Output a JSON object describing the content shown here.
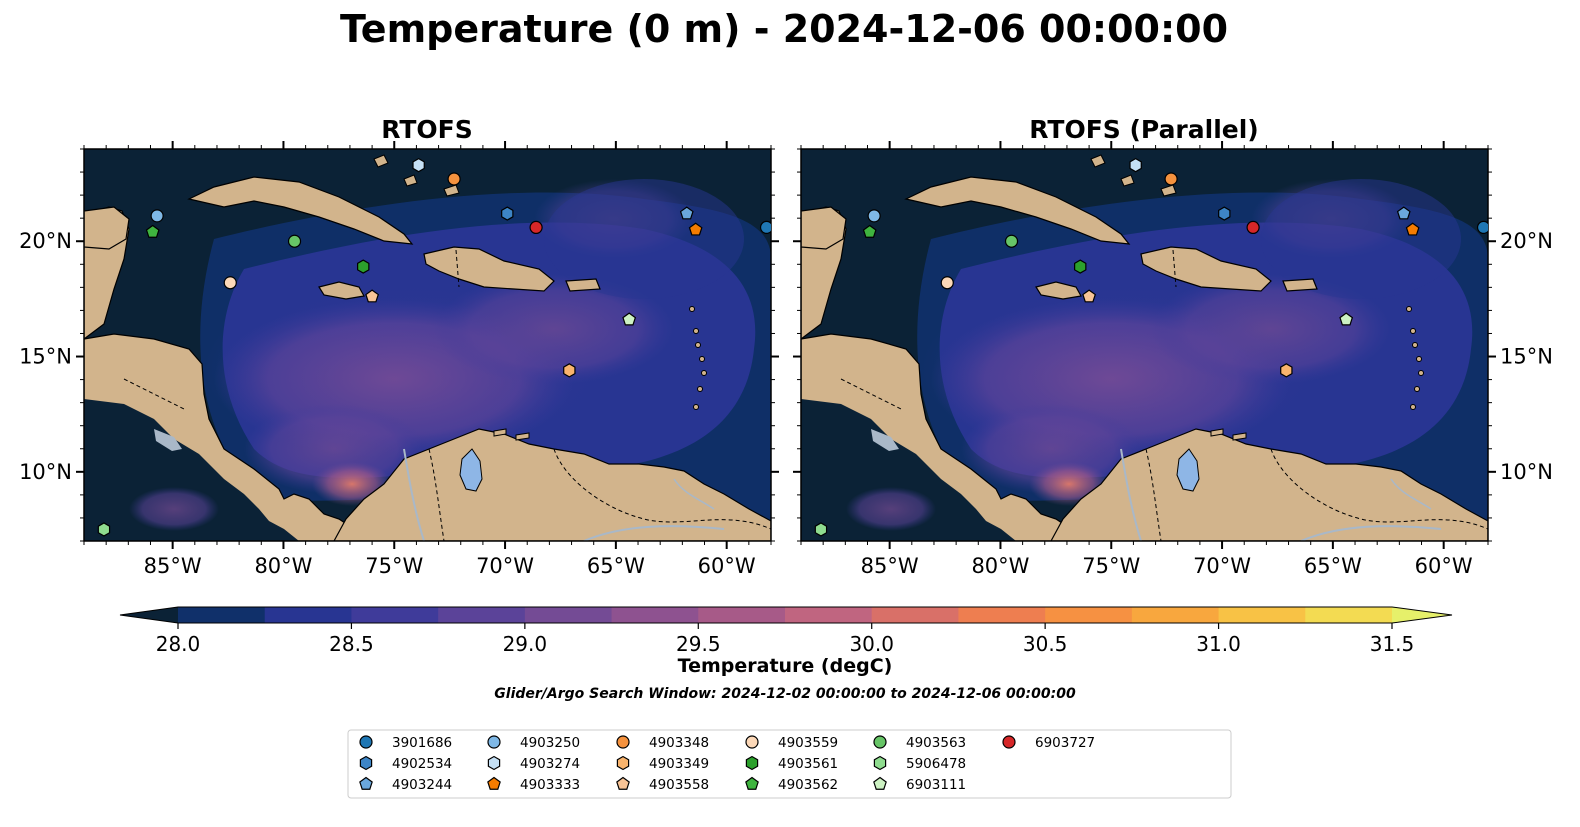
{
  "chart_data": {
    "type": "heatmap",
    "title": "Temperature (0 m) - 2024-12-06 00:00:00",
    "panels": [
      {
        "name": "RTOFS"
      },
      {
        "name": "RTOFS (Parallel)"
      }
    ],
    "lon_range": [
      -89,
      -58
    ],
    "lat_range": [
      7,
      24
    ],
    "x_ticks": [
      -85,
      -80,
      -75,
      -70,
      -65,
      -60
    ],
    "x_tick_labels": [
      "85°W",
      "80°W",
      "75°W",
      "70°W",
      "65°W",
      "60°W"
    ],
    "y_ticks": [
      10,
      15,
      20
    ],
    "y_tick_labels": [
      "10°N",
      "15°N",
      "20°N"
    ],
    "colorbar": {
      "label": "Temperature (degC)",
      "min": 28.0,
      "max": 31.5,
      "step": 0.25,
      "ticks": [
        28.0,
        28.5,
        29.0,
        29.5,
        30.0,
        30.5,
        31.0,
        31.5
      ],
      "tick_labels": [
        "28.0",
        "28.5",
        "29.0",
        "29.5",
        "30.0",
        "30.5",
        "31.0",
        "31.5"
      ],
      "colors": [
        "#0b2236",
        "#10306a",
        "#283592",
        "#3f3b9a",
        "#5b4399",
        "#744b95",
        "#8e5290",
        "#a75a88",
        "#c06580",
        "#d97068",
        "#ee7e50",
        "#f69142",
        "#f8a73e",
        "#f8c245",
        "#f3db52",
        "#e6f06a"
      ]
    },
    "search_window_note": "Glider/Argo Search Window: 2024-12-02 00:00:00 to 2024-12-06 00:00:00",
    "floats": [
      {
        "id": "3901686",
        "marker": "circle",
        "color": "#1f77b4",
        "lon": -58.2,
        "lat": 20.6
      },
      {
        "id": "4902534",
        "marker": "hexagon",
        "color": "#3d85c6",
        "lon": -69.9,
        "lat": 21.2
      },
      {
        "id": "4903244",
        "marker": "pentagon",
        "color": "#6aa7dc",
        "lon": -61.8,
        "lat": 21.2
      },
      {
        "id": "4903250",
        "marker": "circle",
        "color": "#7fb8e6",
        "lon": -85.7,
        "lat": 21.1
      },
      {
        "id": "4903274",
        "marker": "hexagon",
        "color": "#c5e0f5",
        "lon": -73.9,
        "lat": 23.3
      },
      {
        "id": "4903333",
        "marker": "pentagon",
        "color": "#f57c00",
        "lon": -61.4,
        "lat": 20.5
      },
      {
        "id": "4903348",
        "marker": "circle",
        "color": "#f5923e",
        "lon": -72.3,
        "lat": 22.7
      },
      {
        "id": "4903349",
        "marker": "hexagon",
        "color": "#f9b46d",
        "lon": -67.1,
        "lat": 14.4
      },
      {
        "id": "4903558",
        "marker": "pentagon",
        "color": "#f8c496",
        "lon": -76.0,
        "lat": 17.6
      },
      {
        "id": "4903559",
        "marker": "circle",
        "color": "#fcd8b8",
        "lon": -82.4,
        "lat": 18.2
      },
      {
        "id": "4903561",
        "marker": "hexagon",
        "color": "#2ca02c",
        "lon": -76.4,
        "lat": 18.9
      },
      {
        "id": "4903562",
        "marker": "pentagon",
        "color": "#3fb43f",
        "lon": -85.9,
        "lat": 20.4
      },
      {
        "id": "4903563",
        "marker": "circle",
        "color": "#67c567",
        "lon": -79.5,
        "lat": 20.0
      },
      {
        "id": "5906478",
        "marker": "hexagon",
        "color": "#8fdc8f",
        "lon": -88.1,
        "lat": 7.5
      },
      {
        "id": "6903111",
        "marker": "pentagon",
        "color": "#cdf2c3",
        "lon": -64.4,
        "lat": 16.6
      },
      {
        "id": "6903727",
        "marker": "circle",
        "color": "#d62728",
        "lon": -68.6,
        "lat": 20.6
      }
    ]
  },
  "colors": {
    "land": "#d2b48c",
    "ocean": "#0b2236",
    "lake": "#8eb6e6",
    "river": "#a9b8c8",
    "coast": "#000000"
  }
}
